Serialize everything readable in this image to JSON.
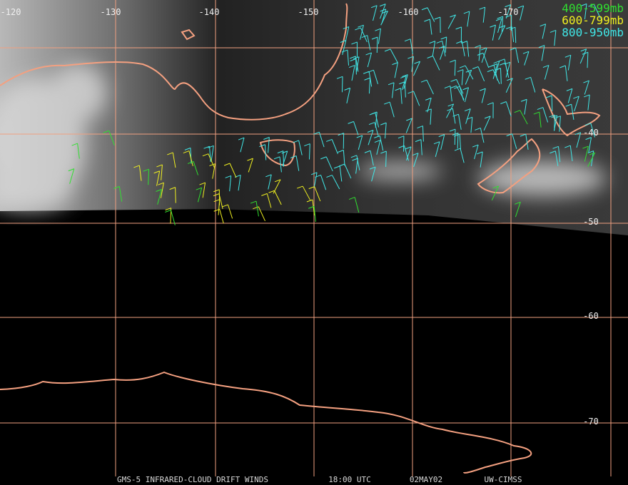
{
  "map": {
    "longitude_labels": [
      "-120",
      "-130",
      "-140",
      "-150",
      "-160",
      "-170"
    ],
    "latitude_labels": [
      "-40",
      "-50",
      "-60",
      "-70"
    ],
    "legend": [
      "400-599mb",
      "600-799mb",
      "800-950mb"
    ],
    "footer": [
      "GMS-5 INFRARED-CLOUD DRIFT WINDS",
      "18:00 UTC",
      "02MAY02",
      "UW-CIMSS"
    ]
  }
}
